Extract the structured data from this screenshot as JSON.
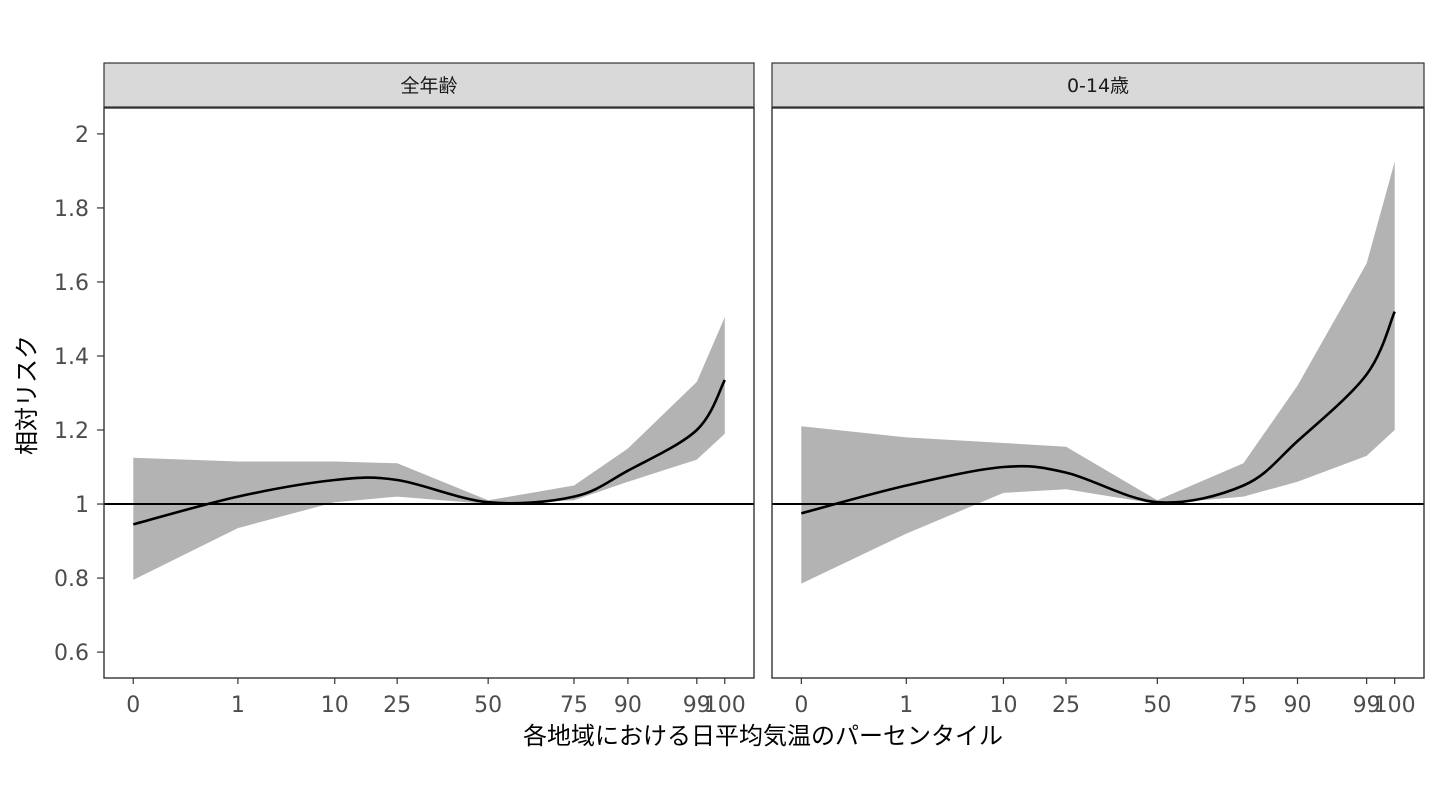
{
  "chart_data": {
    "type": "line",
    "xlabel": "各地域における日平均気温のパーセンタイル",
    "ylabel": "相対リスク",
    "x_ticks": [
      "0",
      "1",
      "10",
      "25",
      "50",
      "75",
      "90",
      "99",
      "100"
    ],
    "y_ticks": [
      "0.6",
      "0.8",
      "1",
      "1.2",
      "1.4",
      "1.6",
      "1.8",
      "2"
    ],
    "ylim": [
      0.53,
      2.07
    ],
    "reference_line": 1,
    "grid": false,
    "panels": [
      {
        "title": "全年齢",
        "x": [
          "0",
          "1",
          "10",
          "25",
          "50",
          "75",
          "90",
          "99",
          "100"
        ],
        "estimate": [
          0.945,
          1.02,
          1.065,
          1.065,
          1.005,
          1.02,
          1.09,
          1.2,
          1.335
        ],
        "lower": [
          0.795,
          0.935,
          1.005,
          1.02,
          1.0,
          1.01,
          1.06,
          1.12,
          1.19
        ],
        "upper": [
          1.125,
          1.115,
          1.115,
          1.11,
          1.01,
          1.05,
          1.15,
          1.33,
          1.505
        ]
      },
      {
        "title": "0-14歳",
        "x": [
          "0",
          "1",
          "10",
          "25",
          "50",
          "75",
          "90",
          "99",
          "100"
        ],
        "estimate": [
          0.975,
          1.05,
          1.1,
          1.085,
          1.005,
          1.05,
          1.17,
          1.35,
          1.52
        ],
        "lower": [
          0.785,
          0.92,
          1.03,
          1.04,
          1.0,
          1.02,
          1.06,
          1.13,
          1.2
        ],
        "upper": [
          1.21,
          1.18,
          1.165,
          1.155,
          1.01,
          1.11,
          1.32,
          1.65,
          1.925
        ]
      }
    ]
  },
  "colors": {
    "band": "#b3b3b3",
    "line": "#000000",
    "strip_fill": "#d9d9d9",
    "border": "#333333",
    "tick_text": "#4d4d4d"
  }
}
